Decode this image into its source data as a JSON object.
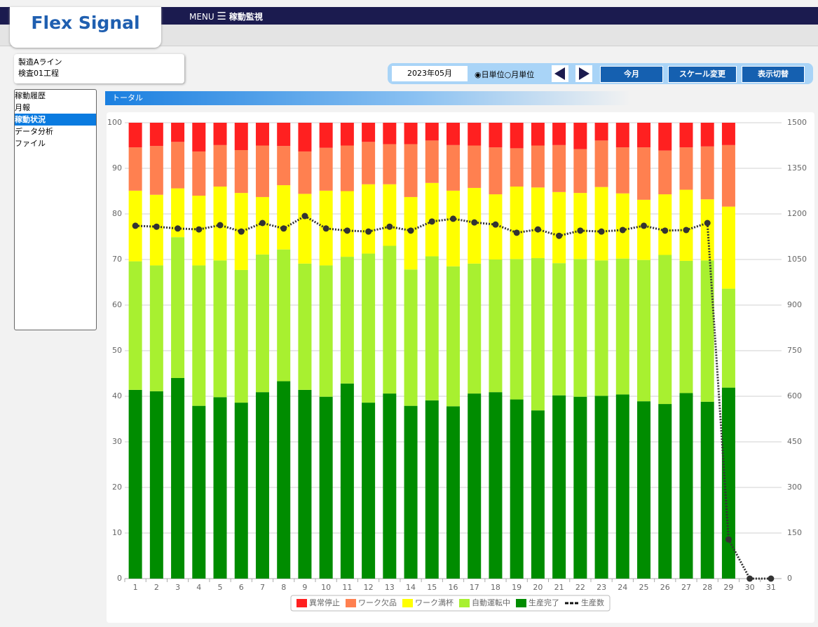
{
  "header": {
    "logo": "Flex Signal",
    "menu": "MENU",
    "title": "稼動監視"
  },
  "info": {
    "line": "製造Aライン",
    "process": "検査01工程"
  },
  "toolbar": {
    "month": "2023年05月",
    "daily": "日単位",
    "monthly": "月単位",
    "buttons": [
      "今月",
      "スケール変更",
      "表示切替"
    ]
  },
  "sidebar": {
    "items": [
      "稼動履歴",
      "月報",
      "稼動状況",
      "データ分析",
      "ファイル"
    ],
    "selected": 2
  },
  "section": {
    "title": "トータル"
  },
  "chart_data": {
    "type": "bar",
    "stacked": true,
    "categories": [
      "1",
      "2",
      "3",
      "4",
      "5",
      "6",
      "7",
      "8",
      "9",
      "10",
      "11",
      "12",
      "13",
      "14",
      "15",
      "16",
      "17",
      "18",
      "19",
      "20",
      "21",
      "22",
      "23",
      "24",
      "25",
      "26",
      "27",
      "28",
      "29",
      "30",
      "31"
    ],
    "series": [
      {
        "name": "異常停止",
        "color": "#ff2020",
        "values": [
          5.4,
          5.1,
          4.2,
          6.3,
          4.9,
          6.0,
          5.0,
          5.1,
          6.3,
          5.5,
          5.0,
          4.2,
          4.7,
          4.7,
          3.9,
          4.9,
          5.0,
          5.4,
          5.6,
          5.0,
          4.9,
          5.8,
          3.9,
          5.4,
          5.4,
          6.1,
          5.4,
          5.2,
          4.9,
          null,
          null
        ]
      },
      {
        "name": "ワーク欠品",
        "color": "#ff8050",
        "values": [
          9.5,
          10.7,
          10.2,
          9.7,
          9.1,
          9.4,
          11.3,
          8.6,
          9.3,
          9.4,
          10.0,
          9.3,
          8.8,
          11.6,
          9.3,
          10.0,
          9.3,
          10.3,
          8.4,
          9.2,
          10.3,
          9.6,
          10.2,
          10.1,
          11.5,
          9.6,
          9.3,
          11.6,
          13.5,
          null,
          null
        ]
      },
      {
        "name": "ワーク満杯",
        "color": "#ffff00",
        "values": [
          15.5,
          15.5,
          10.7,
          15.3,
          16.2,
          16.9,
          12.6,
          14.1,
          15.3,
          16.4,
          14.4,
          15.2,
          13.5,
          15.9,
          16.1,
          16.6,
          16.6,
          14.3,
          15.9,
          15.5,
          15.6,
          14.5,
          16.1,
          14.3,
          13.2,
          13.3,
          15.6,
          13.4,
          18.0,
          null,
          null
        ]
      },
      {
        "name": "自動運転中",
        "color": "#a8f030",
        "values": [
          28.2,
          27.6,
          30.9,
          30.8,
          30.0,
          29.1,
          30.2,
          28.9,
          27.7,
          28.8,
          27.8,
          32.7,
          32.4,
          29.9,
          31.6,
          30.7,
          28.5,
          29.1,
          30.8,
          33.4,
          29.0,
          30.2,
          29.7,
          29.8,
          31.0,
          32.7,
          29.0,
          31.0,
          21.7,
          null,
          null
        ]
      },
      {
        "name": "生産完了",
        "color": "#008c00",
        "values": [
          41.4,
          41.1,
          44.0,
          37.9,
          39.8,
          38.6,
          40.9,
          43.3,
          41.4,
          39.9,
          42.8,
          38.6,
          40.6,
          37.9,
          39.1,
          37.8,
          40.6,
          40.9,
          39.3,
          36.9,
          40.2,
          39.9,
          40.1,
          40.4,
          38.9,
          38.3,
          40.7,
          38.8,
          41.9,
          null,
          null
        ]
      },
      {
        "name": "生産数",
        "color": "#333333",
        "type": "line",
        "axis": "y2",
        "values": [
          1161,
          1158,
          1152,
          1149,
          1163,
          1142,
          1170,
          1152,
          1193,
          1152,
          1145,
          1142,
          1158,
          1145,
          1175,
          1184,
          1172,
          1165,
          1138,
          1149,
          1128,
          1145,
          1142,
          1147,
          1161,
          1145,
          1147,
          1170,
          129,
          0,
          0
        ]
      }
    ],
    "ylim": [
      0,
      100
    ],
    "yticks": [
      0,
      10,
      20,
      30,
      40,
      50,
      60,
      70,
      80,
      90,
      100
    ],
    "y2lim": [
      0,
      1500
    ],
    "y2ticks": [
      0,
      150,
      300,
      450,
      600,
      750,
      900,
      1050,
      1200,
      1350,
      1500
    ],
    "grid": true,
    "legend": "bottom"
  }
}
